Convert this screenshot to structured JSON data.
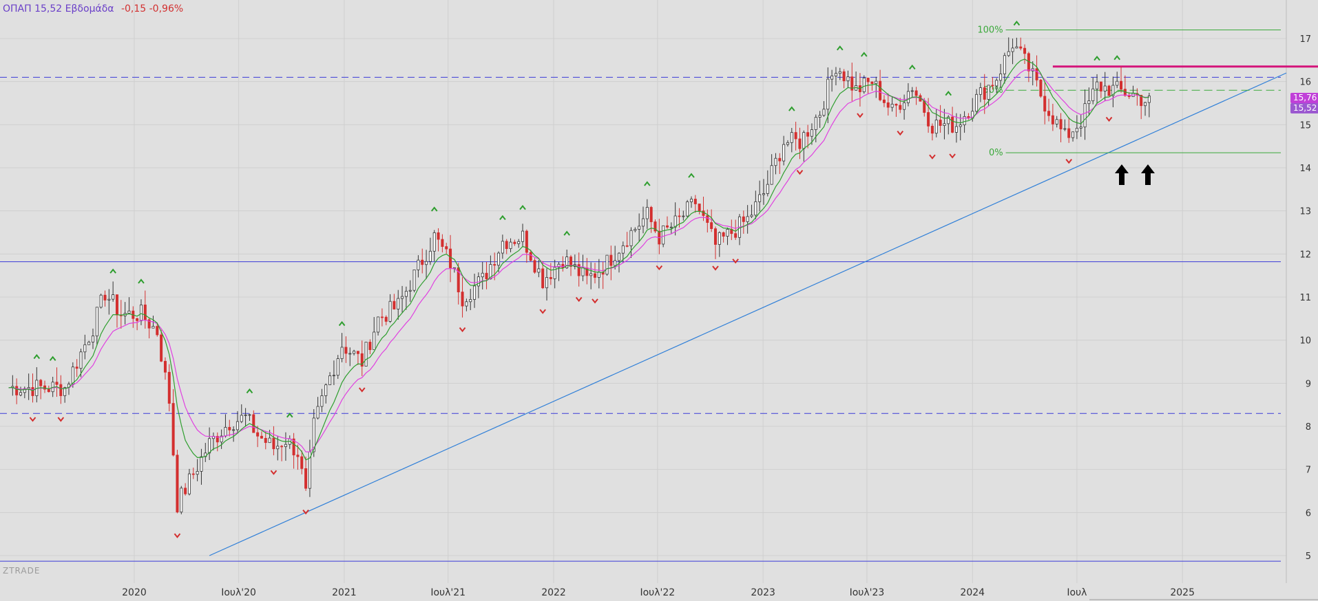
{
  "header": {
    "symbol": "ΟΠΑΠ",
    "price": "15,52",
    "period": "Εβδομάδα",
    "change": "-0,15 -0,96%"
  },
  "watermark": "ZTRADE",
  "price_tags": {
    "ema_fast": "15,76",
    "last": "15,52"
  },
  "colors": {
    "background": "#e0e0e0",
    "grid": "#cfcfcf",
    "candle_up": "#ffffff",
    "candle_down": "#d32f2f",
    "ema_fast": "#2e9e2e",
    "ema_slow": "#e040e0",
    "trendline": "#2f7fd8",
    "horizontal_line": "#3a3ad8",
    "resistance": "#d4147a",
    "fibonacci": "#3aa83a",
    "header_text": "#6a3fc8",
    "change_text": "#d23030"
  },
  "chart_data": {
    "type": "candlestick",
    "title": "ΟΠΑΠ 15,52 Εβδομάδα -0,15 -0,96%",
    "x_tick_labels": [
      "2020",
      "Ιουλ'20",
      "2021",
      "Ιουλ'21",
      "2022",
      "Ιουλ'22",
      "2023",
      "Ιουλ'23",
      "2024",
      "Ιουλ",
      "2025"
    ],
    "x_tick_dates": [
      "2020-01-01",
      "2020-07-01",
      "2021-01-01",
      "2021-07-01",
      "2022-01-01",
      "2022-07-01",
      "2023-01-01",
      "2023-07-01",
      "2024-01-01",
      "2024-07-01",
      "2025-01-01"
    ],
    "y_tick_labels": [
      "5",
      "6",
      "7",
      "8",
      "9",
      "10",
      "11",
      "12",
      "13",
      "14",
      "15",
      "16",
      "17"
    ],
    "ylim": [
      4.7,
      17.3
    ],
    "xlim": [
      "2019-05-12",
      "2025-07-01"
    ],
    "grid": true,
    "weekly_close": [
      [
        "2019-05-27",
        8.9
      ],
      [
        "2019-07-15",
        8.9
      ],
      [
        "2019-09-02",
        8.9
      ],
      [
        "2019-10-21",
        10.3
      ],
      [
        "2019-11-11",
        11.1
      ],
      [
        "2019-12-09",
        10.6
      ],
      [
        "2020-01-13",
        10.6
      ],
      [
        "2020-02-10",
        10.2
      ],
      [
        "2020-03-02",
        8.6
      ],
      [
        "2020-03-16",
        6.2
      ],
      [
        "2020-04-13",
        6.9
      ],
      [
        "2020-05-11",
        7.6
      ],
      [
        "2020-06-15",
        8.1
      ],
      [
        "2020-07-13",
        8.2
      ],
      [
        "2020-08-03",
        7.8
      ],
      [
        "2020-08-31",
        7.5
      ],
      [
        "2020-09-21",
        7.7
      ],
      [
        "2020-10-12",
        7.4
      ],
      [
        "2020-10-26",
        6.4
      ],
      [
        "2020-11-09",
        8.0
      ],
      [
        "2020-11-30",
        8.9
      ],
      [
        "2020-12-28",
        9.9
      ],
      [
        "2021-02-01",
        9.5
      ],
      [
        "2021-03-01",
        10.5
      ],
      [
        "2021-04-05",
        10.8
      ],
      [
        "2021-05-03",
        11.5
      ],
      [
        "2021-06-07",
        12.4
      ],
      [
        "2021-07-05",
        11.8
      ],
      [
        "2021-07-26",
        11.0
      ],
      [
        "2021-08-30",
        11.4
      ],
      [
        "2021-10-04",
        12.3
      ],
      [
        "2021-11-08",
        12.4
      ],
      [
        "2021-12-13",
        11.4
      ],
      [
        "2022-01-17",
        11.9
      ],
      [
        "2022-02-28",
        11.4
      ],
      [
        "2022-04-04",
        11.8
      ],
      [
        "2022-05-09",
        12.4
      ],
      [
        "2022-06-13",
        12.9
      ],
      [
        "2022-07-04",
        12.4
      ],
      [
        "2022-08-01",
        12.7
      ],
      [
        "2022-09-05",
        13.2
      ],
      [
        "2022-10-10",
        12.2
      ],
      [
        "2022-11-07",
        12.5
      ],
      [
        "2022-12-05",
        12.8
      ],
      [
        "2023-01-02",
        13.4
      ],
      [
        "2023-02-06",
        14.6
      ],
      [
        "2023-03-06",
        14.6
      ],
      [
        "2023-04-10",
        15.3
      ],
      [
        "2023-05-08",
        16.4
      ],
      [
        "2023-06-12",
        15.8
      ],
      [
        "2023-07-10",
        16.0
      ],
      [
        "2023-08-14",
        15.3
      ],
      [
        "2023-09-18",
        15.9
      ],
      [
        "2023-10-23",
        15.0
      ],
      [
        "2023-12-04",
        15.0
      ],
      [
        "2024-01-08",
        15.6
      ],
      [
        "2024-02-12",
        16.1
      ],
      [
        "2024-03-11",
        16.9
      ],
      [
        "2024-04-08",
        16.3
      ],
      [
        "2024-05-06",
        15.5
      ],
      [
        "2024-06-10",
        14.7
      ],
      [
        "2024-07-08",
        15.1
      ],
      [
        "2024-08-05",
        15.9
      ],
      [
        "2024-09-09",
        15.8
      ],
      [
        "2024-10-07",
        15.7
      ],
      [
        "2024-11-04",
        15.52
      ]
    ],
    "series": [
      {
        "name": "EMA fast",
        "color": "#2e9e2e"
      },
      {
        "name": "EMA slow",
        "color": "#e040e0"
      }
    ],
    "fibonacci_levels": [
      {
        "label": "100%",
        "value": 17.2
      },
      {
        "label": "50%",
        "value": 15.8
      },
      {
        "label": "0%",
        "value": 14.35
      }
    ],
    "horizontal_lines": [
      {
        "value": 16.1,
        "style": "dashed"
      },
      {
        "value": 11.82,
        "style": "solid"
      },
      {
        "value": 8.3,
        "style": "dashed"
      },
      {
        "value": 4.87,
        "style": "solid"
      }
    ],
    "resistance_line": {
      "value": 16.35,
      "from": "2024-05-20"
    },
    "trendline": {
      "from": [
        "2020-05-11",
        5.0
      ],
      "to": [
        "2025-07-01",
        16.2
      ]
    },
    "arrow_markers": [
      {
        "date": "2024-06-24",
        "value": 14.0
      },
      {
        "date": "2024-08-05",
        "value": 14.0
      }
    ]
  }
}
